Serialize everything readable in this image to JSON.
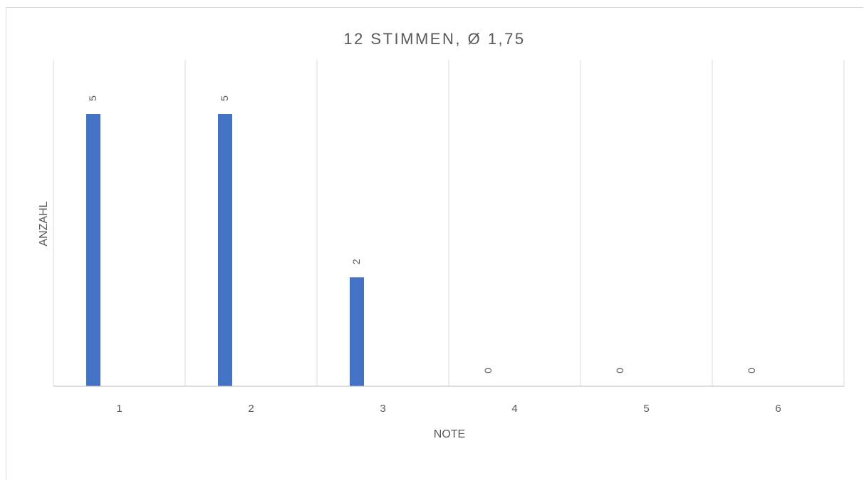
{
  "chart_data": {
    "type": "bar",
    "title": "12 STIMMEN, Ø 1,75",
    "xlabel": "NOTE",
    "ylabel": "ANZAHL",
    "categories": [
      "1",
      "2",
      "3",
      "4",
      "5",
      "6"
    ],
    "values": [
      5,
      5,
      2,
      0,
      0,
      0
    ],
    "data_labels": [
      "5",
      "5",
      "2",
      "0",
      "0",
      "0"
    ],
    "ylim": [
      0,
      5
    ],
    "grid": "vertical",
    "legend": "none",
    "bar_color": "#4472c4",
    "gridline_color": "#d9d9d9",
    "axis_color": "#bfbfbf",
    "text_color": "#595959"
  }
}
